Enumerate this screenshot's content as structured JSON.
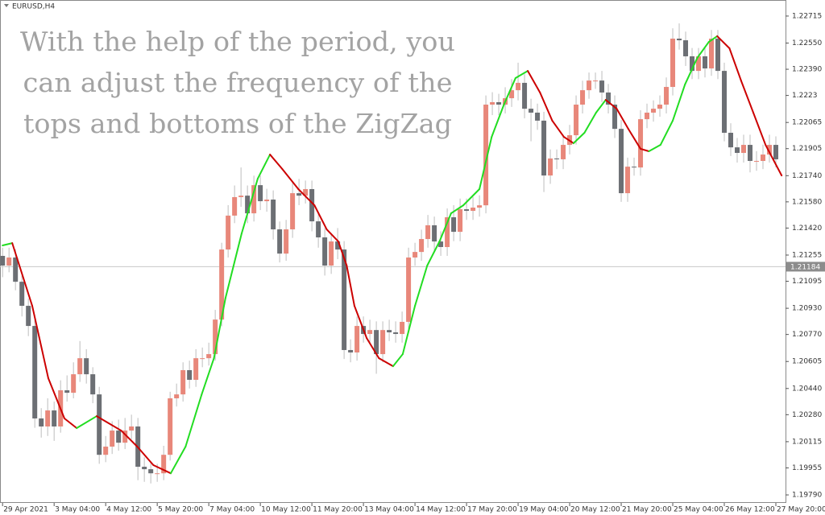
{
  "chart_data": {
    "type": "candlestick",
    "symbol_label": "EURUSD,H4",
    "annotation_lines": [
      "With the help of the period, you",
      "can adjust the frequency of the",
      "tops and bottoms of the ZigZag"
    ],
    "up_color": "#e8877a",
    "down_color": "#6c6f74",
    "wick_color": "#bdbdbd",
    "open": [
      1.2125,
      1.21191,
      1.2124,
      1.21092,
      1.20945,
      1.20822,
      1.20257,
      1.20208,
      1.20306,
      1.20208,
      1.20429,
      1.20414,
      1.20527,
      1.20625,
      1.20527,
      1.20404,
      1.20035,
      1.20085,
      1.20183,
      1.20109,
      1.20183,
      1.20208,
      1.19962,
      1.19947,
      1.19922,
      1.19922,
      1.20035,
      1.2038,
      1.20404,
      1.20552,
      1.20493,
      1.20625,
      1.20625,
      1.2065,
      1.20861,
      1.21289,
      1.21496,
      1.21609,
      1.21618,
      1.2151,
      1.21682,
      1.21584,
      1.21594,
      1.21412,
      1.21264,
      1.21412,
      1.21633,
      1.21618,
      1.21658,
      1.21461,
      1.21363,
      1.21191,
      1.21338,
      1.21289,
      1.20675,
      1.2066,
      1.20822,
      1.20773,
      1.20797,
      1.2065,
      1.20797,
      1.20783,
      1.20773,
      1.20847,
      1.2124,
      1.21274,
      1.21353,
      1.21437,
      1.21338,
      1.21304,
      1.21486,
      1.21397,
      1.21535,
      1.21525,
      1.21545,
      1.21559,
      1.22174,
      1.22189,
      1.22174,
      1.22213,
      1.22262,
      1.22307,
      1.22149,
      1.22125,
      1.22076,
      1.21741,
      1.21845,
      1.2184,
      1.21928,
      1.21987,
      1.22174,
      1.22262,
      1.22321,
      1.22321,
      1.22248,
      1.22174,
      1.22026,
      1.21633,
      1.21795,
      1.2179,
      1.22085,
      1.22125,
      1.22149,
      1.22174,
      1.22282,
      1.22577,
      1.22567,
      1.22469,
      1.2238,
      1.22469,
      1.22395,
      1.22577,
      1.2238,
      1.22002,
      1.21913,
      1.21879,
      1.21928,
      1.2183,
      1.2183,
      1.21869,
      1.21928
    ],
    "high": [
      1.213,
      1.213,
      1.2129,
      1.2113,
      1.2099,
      1.2086,
      1.2032,
      1.2038,
      1.2036,
      1.2049,
      1.2052,
      1.206,
      1.2073,
      1.2068,
      1.2057,
      1.2045,
      1.2015,
      1.2024,
      1.2025,
      1.2026,
      1.2028,
      1.2026,
      1.2002,
      1.1999,
      1.1998,
      1.2009,
      1.2042,
      1.2047,
      1.206,
      1.2061,
      1.2068,
      1.2069,
      1.2072,
      1.2092,
      1.2133,
      1.2156,
      1.2168,
      1.2179,
      1.2168,
      1.2174,
      1.2174,
      1.2166,
      1.2165,
      1.2146,
      1.2147,
      1.217,
      1.2172,
      1.2171,
      1.2171,
      1.2151,
      1.2142,
      1.2139,
      1.2142,
      1.2134,
      1.2074,
      1.2088,
      1.2088,
      1.2086,
      1.2085,
      1.2085,
      1.2086,
      1.2085,
      1.2091,
      1.213,
      1.2133,
      1.2141,
      1.215,
      1.2149,
      1.214,
      1.2154,
      1.2156,
      1.216,
      1.216,
      1.2161,
      1.2162,
      1.2223,
      1.2225,
      1.2224,
      1.2228,
      1.2233,
      1.2243,
      1.2236,
      1.2221,
      1.2218,
      1.2213,
      1.219,
      1.219,
      1.2199,
      1.2205,
      1.2223,
      1.2232,
      1.2237,
      1.2237,
      1.2238,
      1.223,
      1.2223,
      1.2208,
      1.2185,
      1.2185,
      1.2214,
      1.2218,
      1.222,
      1.2223,
      1.2234,
      1.2264,
      1.2267,
      1.2262,
      1.2252,
      1.2252,
      1.2253,
      1.2263,
      1.2263,
      1.2243,
      1.2206,
      1.2197,
      1.2199,
      1.2199,
      1.2189,
      1.2193,
      1.2199,
      1.2198
    ],
    "low": [
      1.2112,
      1.2115,
      1.2104,
      1.2088,
      1.2076,
      1.202,
      1.2014,
      1.2015,
      1.2012,
      1.2017,
      1.2036,
      1.2038,
      1.2048,
      1.2047,
      1.2035,
      1.1998,
      1.1999,
      1.2004,
      1.2006,
      1.2007,
      1.2013,
      1.1988,
      1.1987,
      1.1986,
      1.1987,
      1.1988,
      1.2,
      1.2033,
      1.2036,
      1.2044,
      1.2045,
      1.2057,
      1.2058,
      1.2061,
      1.2082,
      1.2124,
      1.2145,
      1.2155,
      1.2145,
      1.2146,
      1.2153,
      1.2152,
      1.2135,
      1.2121,
      1.2122,
      1.2136,
      1.2156,
      1.2157,
      1.214,
      1.213,
      1.2113,
      1.2114,
      1.2123,
      1.2062,
      1.206,
      1.2061,
      1.2072,
      1.2072,
      1.2053,
      1.206,
      1.2073,
      1.2072,
      1.2072,
      1.208,
      1.2119,
      1.2122,
      1.213,
      1.2128,
      1.2125,
      1.2125,
      1.2134,
      1.2134,
      1.2147,
      1.2147,
      1.2149,
      1.2151,
      1.2211,
      1.2211,
      1.2212,
      1.2216,
      1.222,
      1.2209,
      1.2195,
      1.2202,
      1.2164,
      1.2169,
      1.2178,
      1.2178,
      1.2187,
      1.2193,
      1.2212,
      1.2221,
      1.2227,
      1.2219,
      1.2212,
      1.2197,
      1.2158,
      1.2158,
      1.2174,
      1.2174,
      1.2203,
      1.2207,
      1.221,
      1.2212,
      1.2223,
      1.2251,
      1.2241,
      1.2233,
      1.2233,
      1.2234,
      1.2235,
      1.2233,
      1.2195,
      1.2186,
      1.2182,
      1.2182,
      1.2176,
      1.2177,
      1.2178,
      1.2182,
      1.2179
    ],
    "close": [
      1.21191,
      1.2124,
      1.21092,
      1.20945,
      1.20822,
      1.20257,
      1.20208,
      1.20306,
      1.20208,
      1.20429,
      1.20414,
      1.20527,
      1.20625,
      1.20527,
      1.20404,
      1.20035,
      1.20085,
      1.20183,
      1.20109,
      1.20183,
      1.20208,
      1.19962,
      1.19947,
      1.19922,
      1.19922,
      1.20035,
      1.2038,
      1.20404,
      1.20552,
      1.20493,
      1.20625,
      1.20625,
      1.2065,
      1.20861,
      1.21289,
      1.21496,
      1.21609,
      1.21618,
      1.2151,
      1.21682,
      1.21584,
      1.21594,
      1.21412,
      1.21264,
      1.21412,
      1.21633,
      1.21618,
      1.21658,
      1.21461,
      1.21363,
      1.21191,
      1.21338,
      1.21289,
      1.20675,
      1.2066,
      1.20822,
      1.20773,
      1.20797,
      1.2065,
      1.20797,
      1.20783,
      1.20773,
      1.20847,
      1.2124,
      1.21274,
      1.21353,
      1.21437,
      1.21338,
      1.21304,
      1.21486,
      1.21397,
      1.21535,
      1.21525,
      1.21545,
      1.21559,
      1.22174,
      1.22189,
      1.22174,
      1.22213,
      1.22262,
      1.22307,
      1.22149,
      1.22125,
      1.22076,
      1.21741,
      1.21845,
      1.2184,
      1.21928,
      1.21987,
      1.22174,
      1.22262,
      1.22321,
      1.22321,
      1.22248,
      1.22174,
      1.22026,
      1.21633,
      1.21795,
      1.2179,
      1.22085,
      1.22125,
      1.22149,
      1.22174,
      1.22282,
      1.22577,
      1.22567,
      1.22469,
      1.2238,
      1.22469,
      1.22395,
      1.22577,
      1.2238,
      1.22002,
      1.21913,
      1.21879,
      1.21928,
      1.2183,
      1.2183,
      1.21869,
      1.21928,
      1.2184
    ],
    "zigzag": {
      "up_color": "#22dd22",
      "down_color": "#cc0000",
      "x": [
        0,
        1.5,
        4.6,
        7.1,
        9.6,
        11.5,
        14.6,
        18.4,
        20.9,
        23.4,
        26.1,
        28.4,
        30.9,
        32.8,
        34.6,
        37.1,
        39.6,
        41.5,
        43.4,
        45.9,
        48.4,
        50.3,
        52.1,
        53.4,
        54.6,
        56.5,
        58.4,
        60.6,
        62.1,
        64,
        65.9,
        67.8,
        69.6,
        71.5,
        74,
        75.9,
        77.8,
        79.6,
        81.5,
        83.4,
        85.3,
        87.1,
        88.6,
        90.3,
        92.1,
        93.6,
        95.3,
        97.1,
        99,
        100.3,
        102.1,
        104,
        105.9,
        107.8,
        109.6,
        110.9,
        112.8,
        114.6,
        116.5,
        118.4,
        120.9
      ],
      "values": [
        1.21314,
        1.21328,
        1.20945,
        1.20502,
        1.20257,
        1.20198,
        1.20271,
        1.20183,
        1.20085,
        1.19972,
        1.19922,
        1.20085,
        1.20404,
        1.20625,
        1.20994,
        1.21387,
        1.21722,
        1.21869,
        1.21781,
        1.21658,
        1.21559,
        1.21412,
        1.21338,
        1.21191,
        1.20945,
        1.20748,
        1.20625,
        1.20576,
        1.2065,
        1.20945,
        1.21191,
        1.21338,
        1.2151,
        1.21559,
        1.21658,
        1.21977,
        1.22174,
        1.22336,
        1.2238,
        1.22248,
        1.22076,
        1.21977,
        1.21938,
        1.22002,
        1.22125,
        1.22203,
        1.22149,
        1.22026,
        1.21904,
        1.21889,
        1.21928,
        1.22076,
        1.22297,
        1.22459,
        1.22557,
        1.22592,
        1.22518,
        1.22321,
        1.22125,
        1.21928,
        1.21741
      ]
    },
    "current_price": 1.21184,
    "xlim": [
      -0.4,
      121.5
    ],
    "xticks": [
      {
        "value": 0,
        "label": "29 Apr 2021"
      },
      {
        "value": 8,
        "label": "3 May 04:00"
      },
      {
        "value": 16,
        "label": "4 May 12:00"
      },
      {
        "value": 24,
        "label": "5 May 20:00"
      },
      {
        "value": 32,
        "label": "7 May 04:00"
      },
      {
        "value": 40,
        "label": "10 May 12:00"
      },
      {
        "value": 48,
        "label": "11 May 20:00"
      },
      {
        "value": 56,
        "label": "13 May 04:00"
      },
      {
        "value": 64,
        "label": "14 May 12:00"
      },
      {
        "value": 72,
        "label": "17 May 20:00"
      },
      {
        "value": 80,
        "label": "19 May 04:00"
      },
      {
        "value": 88,
        "label": "20 May 12:00"
      },
      {
        "value": 96,
        "label": "21 May 20:00"
      },
      {
        "value": 104,
        "label": "25 May 04:00"
      },
      {
        "value": 112,
        "label": "26 May 12:00"
      },
      {
        "value": 120,
        "label": "27 May 20:00"
      }
    ],
    "ylim": [
      1.19741,
      1.22813
    ],
    "yticks": [
      1.22715,
      {
        "value": 1.2255,
        "label": "1.22550"
      },
      {
        "value": 1.2239,
        "label": "1.22390"
      },
      1.2223,
      1.22065,
      1.21905,
      {
        "value": 1.2174,
        "label": "1.21740"
      },
      {
        "value": 1.2158,
        "label": "1.21580"
      },
      {
        "value": 1.2142,
        "label": "1.21420"
      },
      1.21255,
      1.21095,
      {
        "value": 1.2093,
        "label": "1.20930"
      },
      {
        "value": 1.2077,
        "label": "1.20770"
      },
      1.20605,
      {
        "value": 1.2044,
        "label": "1.20440"
      },
      {
        "value": 1.2028,
        "label": "1.20280"
      },
      1.20115,
      1.19955,
      {
        "value": 1.1979,
        "label": "1.19790"
      }
    ]
  }
}
